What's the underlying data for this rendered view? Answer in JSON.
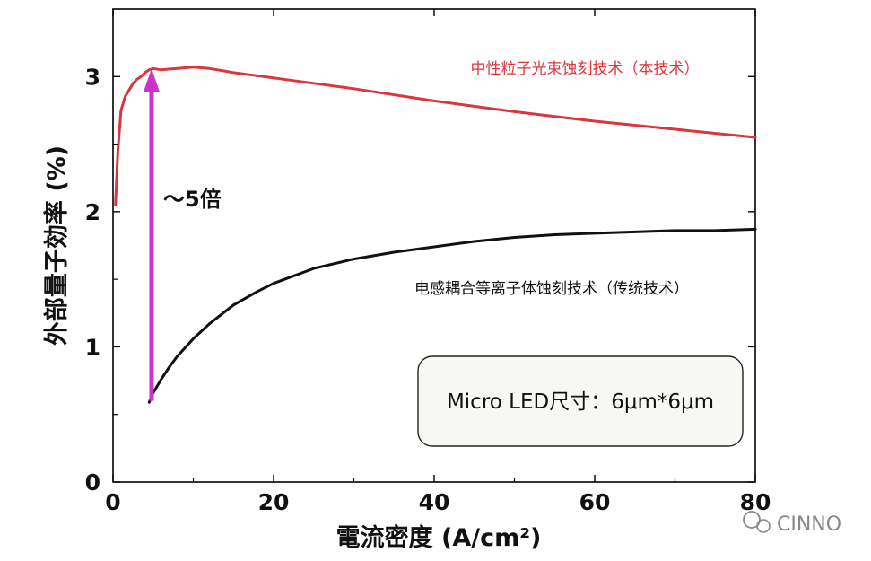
{
  "chart_data": {
    "type": "line",
    "xlabel": "電流密度 (A/cm²)",
    "ylabel": "外部量子効率 (%)",
    "xlim": [
      0,
      80
    ],
    "ylim": [
      0,
      3.5
    ],
    "x_ticks": [
      0,
      20,
      40,
      60,
      80
    ],
    "y_ticks": [
      0,
      1,
      2,
      3
    ],
    "grid": false,
    "series": [
      {
        "name": "中性粒子光束蚀刻技术（本技术）",
        "color": "#d9363e",
        "x": [
          0.3,
          0.6,
          1,
          1.5,
          2,
          2.5,
          3,
          3.5,
          4,
          4.5,
          5,
          6,
          8,
          10,
          12,
          15,
          20,
          25,
          30,
          40,
          50,
          60,
          70,
          80
        ],
        "y": [
          2.05,
          2.45,
          2.75,
          2.85,
          2.9,
          2.95,
          2.98,
          3.0,
          3.03,
          3.05,
          3.06,
          3.05,
          3.06,
          3.07,
          3.06,
          3.03,
          2.99,
          2.95,
          2.91,
          2.82,
          2.74,
          2.67,
          2.61,
          2.55
        ]
      },
      {
        "name": "电感耦合等离子体蚀刻技术（传统技术）",
        "color": "#111111",
        "x": [
          4.5,
          5,
          6,
          7,
          8,
          10,
          12,
          15,
          18,
          20,
          25,
          30,
          35,
          40,
          45,
          50,
          55,
          60,
          65,
          70,
          75,
          80
        ],
        "y": [
          0.59,
          0.66,
          0.76,
          0.85,
          0.93,
          1.06,
          1.17,
          1.31,
          1.41,
          1.47,
          1.58,
          1.65,
          1.7,
          1.74,
          1.78,
          1.81,
          1.83,
          1.84,
          1.85,
          1.86,
          1.86,
          1.87
        ]
      }
    ],
    "annotations": [
      {
        "type": "arrow",
        "color": "#cc33cc",
        "x": 4.8,
        "y_from": 0.6,
        "y_to": 3.06,
        "label": "～5倍"
      }
    ],
    "text_box": "Micro LED尺寸：6μm*6μm"
  },
  "watermark": {
    "text": "CINNO"
  },
  "colors": {
    "axis": "#000000",
    "tick_text": "#111111",
    "label_red": "#d9363e",
    "arrow": "#cc33cc",
    "box_bg": "#f7f7f3",
    "watermark": "#888888",
    "plot_bg": "#ffffff"
  }
}
